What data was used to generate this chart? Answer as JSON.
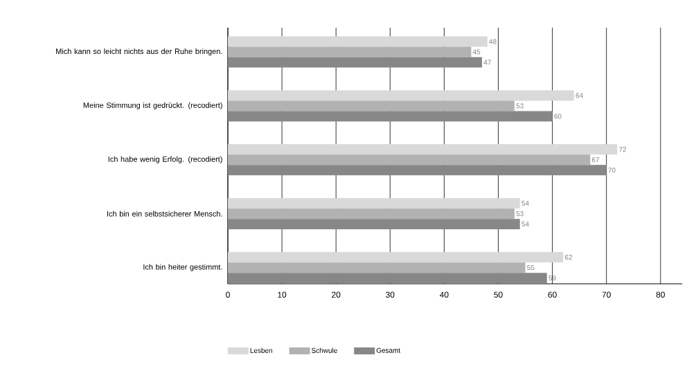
{
  "chart_data": {
    "type": "bar",
    "orientation": "horizontal",
    "categories": [
      "Mich kann so leicht nichts aus der Ruhe bringen.",
      "Meine Stimmung ist gedrückt. (recodiert)",
      "Ich habe wenig Erfolg. (recodiert)",
      "Ich bin ein selbstsicherer Mensch.",
      "Ich bin heiter gestimmt."
    ],
    "series": [
      {
        "name": "Lesben",
        "color": "#d9d9d9",
        "values": [
          48,
          64,
          72,
          54,
          62
        ]
      },
      {
        "name": "Schwule",
        "color": "#b2b2b2",
        "values": [
          45,
          53,
          67,
          53,
          55
        ]
      },
      {
        "name": "Gesamt",
        "color": "#878787",
        "values": [
          47,
          60,
          70,
          54,
          59
        ]
      }
    ],
    "xlim": [
      0,
      84
    ],
    "xticks": [
      0,
      10,
      20,
      30,
      40,
      50,
      60,
      70,
      80
    ],
    "grid": "x",
    "legend": "bottom",
    "data_labels": true
  }
}
